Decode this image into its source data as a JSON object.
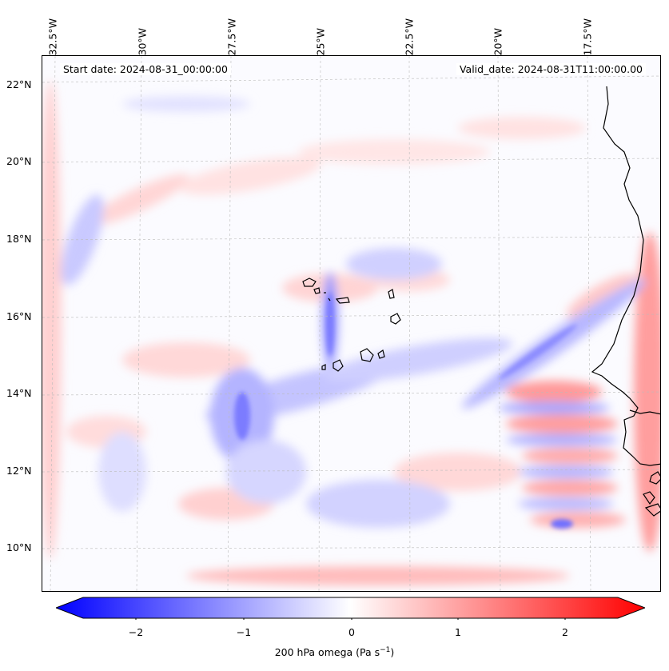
{
  "map": {
    "start_date": "Start date: 2024-08-31_00:00:00",
    "valid_date": "Valid_date: 2024-08-31T11:00:00.00",
    "lon_labels": [
      "32.5°W",
      "30°W",
      "27.5°W",
      "25°W",
      "22.5°W",
      "20°W",
      "17.5°W"
    ],
    "lat_labels": [
      "22°N",
      "20°N",
      "18°N",
      "16°N",
      "14°N",
      "12°N",
      "10°N"
    ],
    "gridlines": true,
    "coastline_color": "#000000"
  },
  "colorbar": {
    "label": "200 hPa omega (Pa s",
    "label_sup": "−1",
    "label_end": ")",
    "ticks": [
      "−2",
      "−1",
      "0",
      "1",
      "2"
    ],
    "min_color": "#0000ff",
    "mid_color": "#ffffff",
    "max_color": "#ff0000",
    "range": [
      -2.5,
      2.5
    ],
    "extend": "both"
  }
}
